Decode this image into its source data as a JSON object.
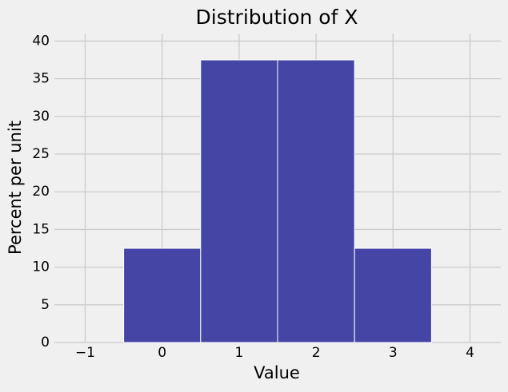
{
  "chart_data": {
    "type": "histogram",
    "title": "Distribution of X",
    "xlabel": "Value",
    "ylabel": "Percent per unit",
    "bins": [
      -0.5,
      0.5,
      1.5,
      2.5,
      3.5
    ],
    "values": [
      12.5,
      37.5,
      37.5,
      12.5
    ],
    "color": "#4545a6",
    "xlim": [
      -1.4,
      4.4
    ],
    "xticks": [
      {
        "value": -1,
        "label": "−1"
      },
      0,
      1,
      2,
      3,
      4
    ],
    "ylim": [
      0,
      41
    ],
    "yticks": [
      0,
      5,
      10,
      15,
      20,
      25,
      30,
      35,
      40
    ],
    "grid": true
  }
}
